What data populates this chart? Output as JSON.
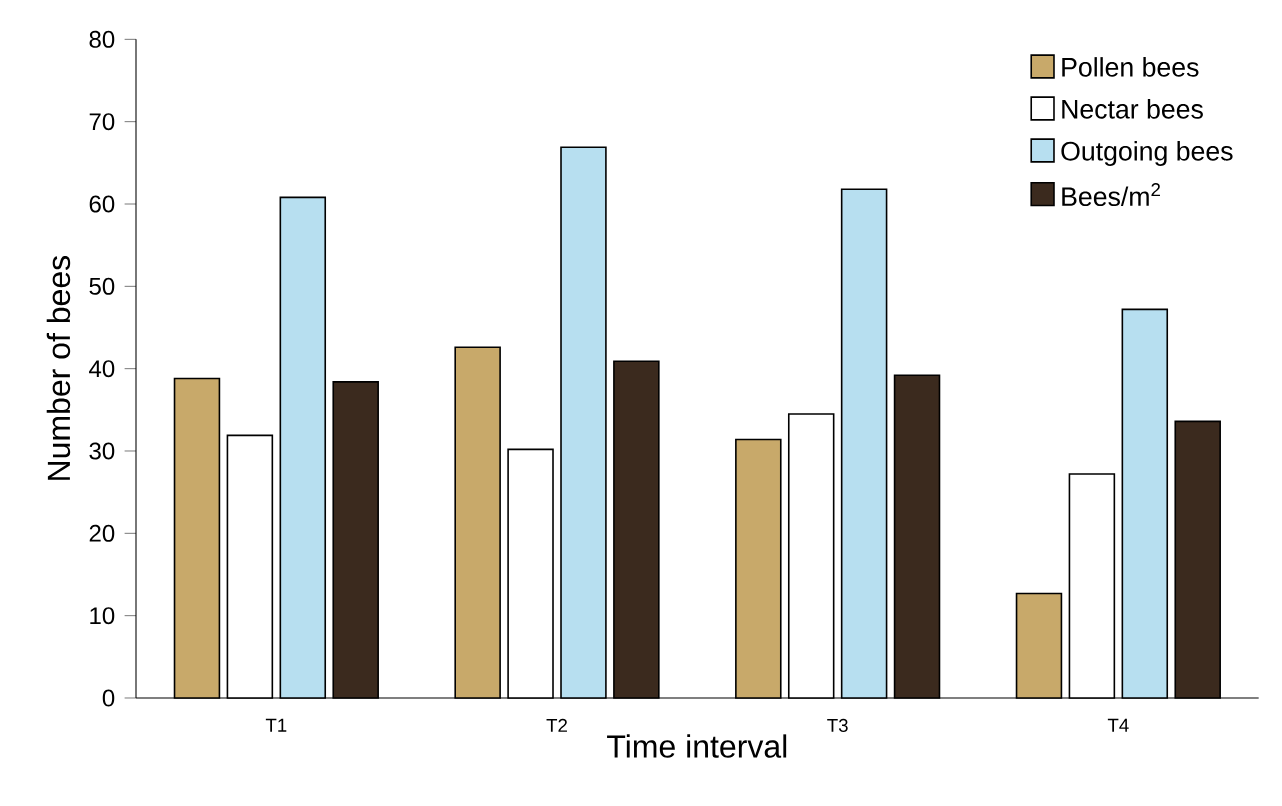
{
  "chart_data": {
    "type": "bar",
    "xlabel": "Time interval",
    "ylabel": "Number of bees",
    "categories": [
      "T1",
      "T2",
      "T3",
      "T4"
    ],
    "series": [
      {
        "name": "Pollen bees",
        "color": "#c8a96a",
        "values": [
          38.8,
          42.6,
          31.4,
          12.7
        ]
      },
      {
        "name": "Nectar bees",
        "color": "#ffffff",
        "values": [
          31.9,
          30.2,
          34.5,
          27.2
        ]
      },
      {
        "name": "Outgoing bees",
        "color": "#b7dff0",
        "values": [
          60.8,
          66.9,
          61.8,
          47.2
        ]
      },
      {
        "name": "Bees/m$^{2}$",
        "color": "#3b2a1e",
        "values": [
          38.4,
          40.9,
          39.2,
          33.6
        ]
      }
    ],
    "ylim": [
      0,
      80
    ],
    "yticks": [
      0,
      10,
      20,
      30,
      40,
      50,
      60,
      70,
      80
    ],
    "legend": "top right"
  }
}
